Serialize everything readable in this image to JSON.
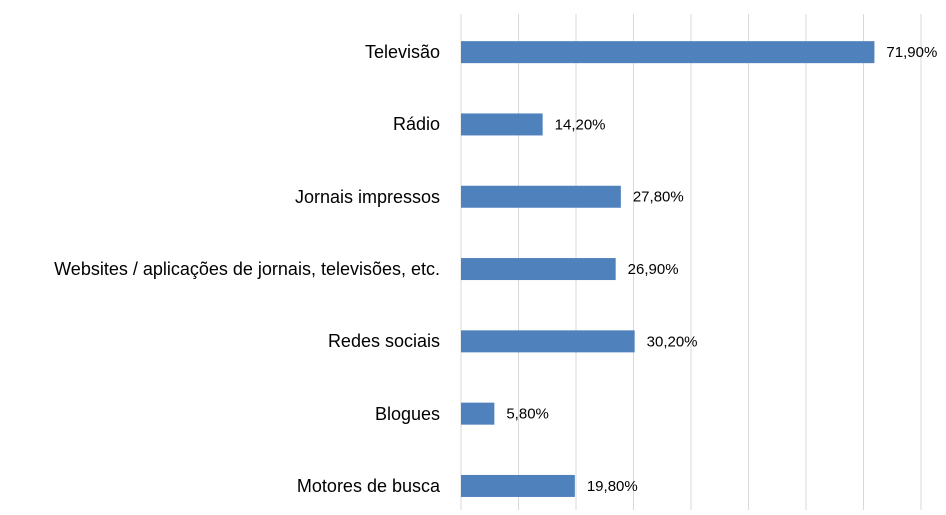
{
  "chart_data": {
    "type": "bar",
    "orientation": "horizontal",
    "categories": [
      "Televisão",
      "Rádio",
      "Jornais impressos",
      "Websites / aplicações de jornais, televisões, etc.",
      "Redes sociais",
      "Blogues",
      "Motores de busca"
    ],
    "values": [
      71.9,
      14.2,
      27.8,
      26.9,
      30.2,
      5.8,
      19.8
    ],
    "value_labels": [
      "71,90%",
      "14,20%",
      "27,80%",
      "26,90%",
      "30,20%",
      "5,80%",
      "19,80%"
    ],
    "color": "#4f81bd",
    "xlim": [
      0,
      80
    ],
    "xticks": [
      0,
      10,
      20,
      30,
      40,
      50,
      60,
      70,
      80
    ],
    "grid": true
  }
}
